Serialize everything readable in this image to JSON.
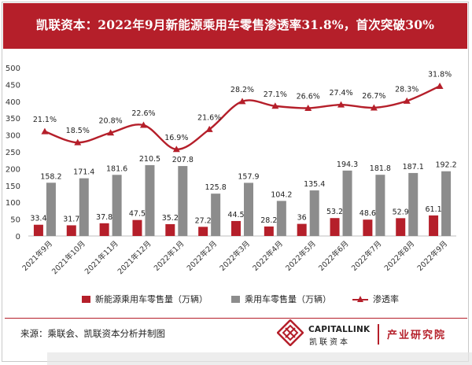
{
  "header": {
    "title": "凯联资本：2022年9月新能源乘用车零售渗透率31.8%，首次突破30%"
  },
  "footer": {
    "source": "来源：乘联会、凯联资本分析并制图",
    "brand_en": "CAPITALLINK",
    "brand_cn": "凯联资本",
    "dept": "产业研究院"
  },
  "colors": {
    "nev": "#b51f2a",
    "total": "#8c8c8c",
    "rate": "#b51f2a",
    "banner": "#b51f2a"
  },
  "chart_data": {
    "type": "bar",
    "categories": [
      "2021年9月",
      "2021年10月",
      "2021年11月",
      "2021年12月",
      "2022年1月",
      "2022年2月",
      "2022年3月",
      "2022年4月",
      "2022年5月",
      "2022年6月",
      "2022年7月",
      "2022年8月",
      "2022年9月"
    ],
    "ylim": [
      0,
      500
    ],
    "yticks": [
      0,
      50,
      100,
      150,
      200,
      250,
      300,
      350,
      400,
      450,
      500
    ],
    "grid": false,
    "legend_position": "bottom",
    "series": [
      {
        "name": "新能源乘用车零售量（万辆）",
        "type": "bar",
        "values": [
          33.4,
          31.7,
          37.8,
          47.5,
          35.2,
          27.2,
          44.5,
          28.2,
          36,
          53.2,
          48.6,
          52.9,
          61.1
        ]
      },
      {
        "name": "乘用车零售量（万辆）",
        "type": "bar",
        "values": [
          158.2,
          171.4,
          181.6,
          210.5,
          207.8,
          125.8,
          157.9,
          104.2,
          135.4,
          194.3,
          181.8,
          187.1,
          192.2
        ]
      },
      {
        "name": "渗透率",
        "type": "line",
        "values": [
          21.1,
          18.5,
          20.8,
          22.6,
          16.9,
          21.6,
          28.2,
          27.1,
          26.6,
          27.4,
          26.7,
          28.3,
          31.8
        ],
        "labels": [
          "21.1%",
          "18.5%",
          "20.8%",
          "22.6%",
          "16.9%",
          "21.6%",
          "28.2%",
          "27.1%",
          "26.6%",
          "27.4%",
          "26.7%",
          "28.3%",
          "31.8%"
        ]
      }
    ]
  }
}
